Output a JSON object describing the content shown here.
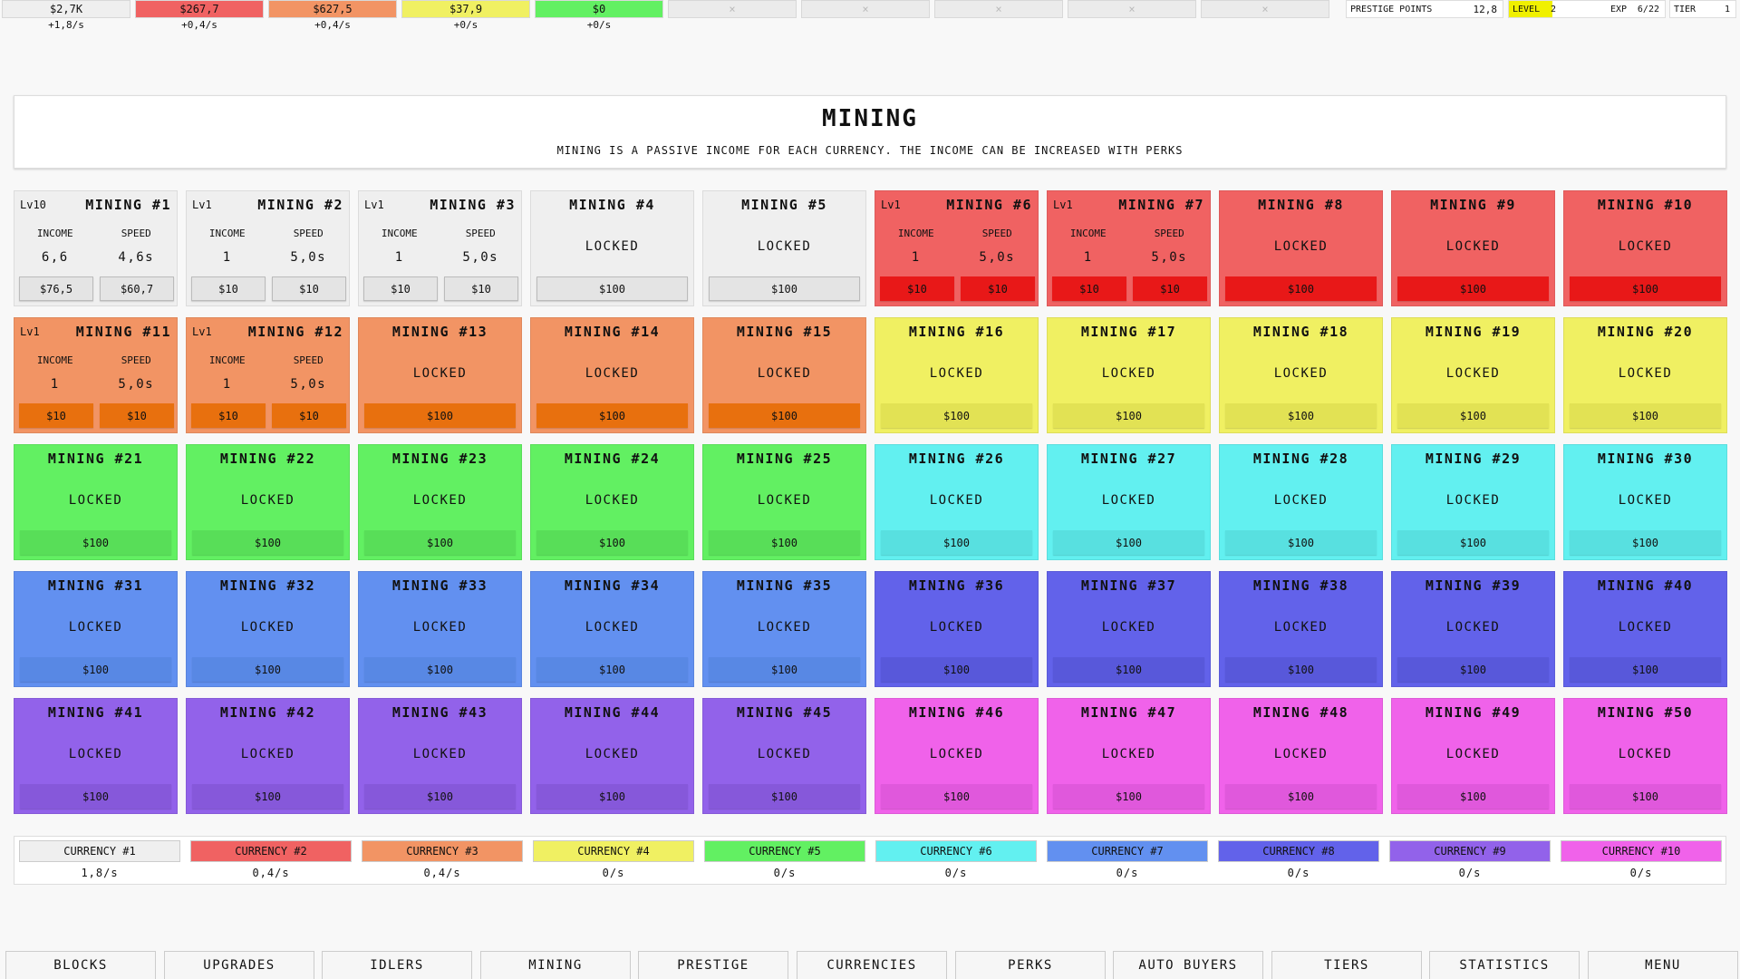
{
  "top_bar": {
    "currencies": [
      {
        "amount": "$2,7K",
        "rate": "+1,8/s"
      },
      {
        "amount": "$267,7",
        "rate": "+0,4/s"
      },
      {
        "amount": "$627,5",
        "rate": "+0,4/s"
      },
      {
        "amount": "$37,9",
        "rate": "+0/s"
      },
      {
        "amount": "$0",
        "rate": "+0/s"
      },
      {
        "amount": "×"
      },
      {
        "amount": "×"
      },
      {
        "amount": "×"
      },
      {
        "amount": "×"
      },
      {
        "amount": "×"
      }
    ],
    "prestige": {
      "label": "PRESTIGE POINTS",
      "value": "12,8"
    },
    "level": {
      "label": "LEVEL",
      "value": "2",
      "exp_label": "EXP",
      "exp_value": "6/22"
    },
    "tier": {
      "label": "TIER",
      "value": "1"
    }
  },
  "header": {
    "title": "MINING",
    "description": "MINING IS A PASSIVE INCOME FOR EACH CURRENCY. THE INCOME CAN BE INCREASED WITH PERKS"
  },
  "cards": [
    {
      "level": "Lv10",
      "title": "MINING #1",
      "income_label": "INCOME",
      "income": "6,6",
      "speed_label": "SPEED",
      "speed": "4,6s",
      "income_cost": "$76,5",
      "speed_cost": "$60,7"
    },
    {
      "level": "Lv1",
      "title": "MINING #2",
      "income_label": "INCOME",
      "income": "1",
      "speed_label": "SPEED",
      "speed": "5,0s",
      "income_cost": "$10",
      "speed_cost": "$10"
    },
    {
      "level": "Lv1",
      "title": "MINING #3",
      "income_label": "INCOME",
      "income": "1",
      "speed_label": "SPEED",
      "speed": "5,0s",
      "income_cost": "$10",
      "speed_cost": "$10"
    },
    {
      "title": "MINING #4",
      "status": "LOCKED",
      "cost": "$100"
    },
    {
      "title": "MINING #5",
      "status": "LOCKED",
      "cost": "$100"
    },
    {
      "level": "Lv1",
      "title": "MINING #6",
      "income_label": "INCOME",
      "income": "1",
      "speed_label": "SPEED",
      "speed": "5,0s",
      "income_cost": "$10",
      "speed_cost": "$10"
    },
    {
      "level": "Lv1",
      "title": "MINING #7",
      "income_label": "INCOME",
      "income": "1",
      "speed_label": "SPEED",
      "speed": "5,0s",
      "income_cost": "$10",
      "speed_cost": "$10"
    },
    {
      "title": "MINING #8",
      "status": "LOCKED",
      "cost": "$100"
    },
    {
      "title": "MINING #9",
      "status": "LOCKED",
      "cost": "$100"
    },
    {
      "title": "MINING #10",
      "status": "LOCKED",
      "cost": "$100"
    },
    {
      "level": "Lv1",
      "title": "MINING #11",
      "income_label": "INCOME",
      "income": "1",
      "speed_label": "SPEED",
      "speed": "5,0s",
      "income_cost": "$10",
      "speed_cost": "$10"
    },
    {
      "level": "Lv1",
      "title": "MINING #12",
      "income_label": "INCOME",
      "income": "1",
      "speed_label": "SPEED",
      "speed": "5,0s",
      "income_cost": "$10",
      "speed_cost": "$10"
    },
    {
      "title": "MINING #13",
      "status": "LOCKED",
      "cost": "$100"
    },
    {
      "title": "MINING #14",
      "status": "LOCKED",
      "cost": "$100"
    },
    {
      "title": "MINING #15",
      "status": "LOCKED",
      "cost": "$100"
    },
    {
      "title": "MINING #16",
      "status": "LOCKED",
      "cost": "$100"
    },
    {
      "title": "MINING #17",
      "status": "LOCKED",
      "cost": "$100"
    },
    {
      "title": "MINING #18",
      "status": "LOCKED",
      "cost": "$100"
    },
    {
      "title": "MINING #19",
      "status": "LOCKED",
      "cost": "$100"
    },
    {
      "title": "MINING #20",
      "status": "LOCKED",
      "cost": "$100"
    },
    {
      "title": "MINING #21",
      "status": "LOCKED",
      "cost": "$100"
    },
    {
      "title": "MINING #22",
      "status": "LOCKED",
      "cost": "$100"
    },
    {
      "title": "MINING #23",
      "status": "LOCKED",
      "cost": "$100"
    },
    {
      "title": "MINING #24",
      "status": "LOCKED",
      "cost": "$100"
    },
    {
      "title": "MINING #25",
      "status": "LOCKED",
      "cost": "$100"
    },
    {
      "title": "MINING #26",
      "status": "LOCKED",
      "cost": "$100"
    },
    {
      "title": "MINING #27",
      "status": "LOCKED",
      "cost": "$100"
    },
    {
      "title": "MINING #28",
      "status": "LOCKED",
      "cost": "$100"
    },
    {
      "title": "MINING #29",
      "status": "LOCKED",
      "cost": "$100"
    },
    {
      "title": "MINING #30",
      "status": "LOCKED",
      "cost": "$100"
    },
    {
      "title": "MINING #31",
      "status": "LOCKED",
      "cost": "$100"
    },
    {
      "title": "MINING #32",
      "status": "LOCKED",
      "cost": "$100"
    },
    {
      "title": "MINING #33",
      "status": "LOCKED",
      "cost": "$100"
    },
    {
      "title": "MINING #34",
      "status": "LOCKED",
      "cost": "$100"
    },
    {
      "title": "MINING #35",
      "status": "LOCKED",
      "cost": "$100"
    },
    {
      "title": "MINING #36",
      "status": "LOCKED",
      "cost": "$100"
    },
    {
      "title": "MINING #37",
      "status": "LOCKED",
      "cost": "$100"
    },
    {
      "title": "MINING #38",
      "status": "LOCKED",
      "cost": "$100"
    },
    {
      "title": "MINING #39",
      "status": "LOCKED",
      "cost": "$100"
    },
    {
      "title": "MINING #40",
      "status": "LOCKED",
      "cost": "$100"
    },
    {
      "title": "MINING #41",
      "status": "LOCKED",
      "cost": "$100"
    },
    {
      "title": "MINING #42",
      "status": "LOCKED",
      "cost": "$100"
    },
    {
      "title": "MINING #43",
      "status": "LOCKED",
      "cost": "$100"
    },
    {
      "title": "MINING #44",
      "status": "LOCKED",
      "cost": "$100"
    },
    {
      "title": "MINING #45",
      "status": "LOCKED",
      "cost": "$100"
    },
    {
      "title": "MINING #46",
      "status": "LOCKED",
      "cost": "$100"
    },
    {
      "title": "MINING #47",
      "status": "LOCKED",
      "cost": "$100"
    },
    {
      "title": "MINING #48",
      "status": "LOCKED",
      "cost": "$100"
    },
    {
      "title": "MINING #49",
      "status": "LOCKED",
      "cost": "$100"
    },
    {
      "title": "MINING #50",
      "status": "LOCKED",
      "cost": "$100"
    }
  ],
  "currencies": [
    {
      "name": "CURRENCY #1",
      "rate": "1,8/s",
      "color": "#efefef",
      "button_color": "#e4e4e4"
    },
    {
      "name": "CURRENCY #2",
      "rate": "0,4/s",
      "color": "#f06262",
      "button_color": "#e81818"
    },
    {
      "name": "CURRENCY #3",
      "rate": "0,4/s",
      "color": "#f29464",
      "button_color": "#e8700e"
    },
    {
      "name": "CURRENCY #4",
      "rate": "0/s",
      "color": "#f0f062",
      "button_color": "#e2e254"
    },
    {
      "name": "CURRENCY #5",
      "rate": "0/s",
      "color": "#62f062",
      "button_color": "#58de58"
    },
    {
      "name": "CURRENCY #6",
      "rate": "0/s",
      "color": "#62f0f0",
      "button_color": "#58e0e0"
    },
    {
      "name": "CURRENCY #7",
      "rate": "0/s",
      "color": "#6290f0",
      "button_color": "#5888e4"
    },
    {
      "name": "CURRENCY #8",
      "rate": "0/s",
      "color": "#6262ea",
      "button_color": "#5858da"
    },
    {
      "name": "CURRENCY #9",
      "rate": "0/s",
      "color": "#9262ea",
      "button_color": "#8658da"
    },
    {
      "name": "CURRENCY #10",
      "rate": "0/s",
      "color": "#f062ea",
      "button_color": "#e058dc"
    }
  ],
  "nav": [
    "BLOCKS",
    "UPGRADES",
    "IDLERS",
    "MINING",
    "PRESTIGE",
    "CURRENCIES",
    "PERKS",
    "AUTO BUYERS",
    "TIERS",
    "STATISTICS",
    "MENU"
  ]
}
